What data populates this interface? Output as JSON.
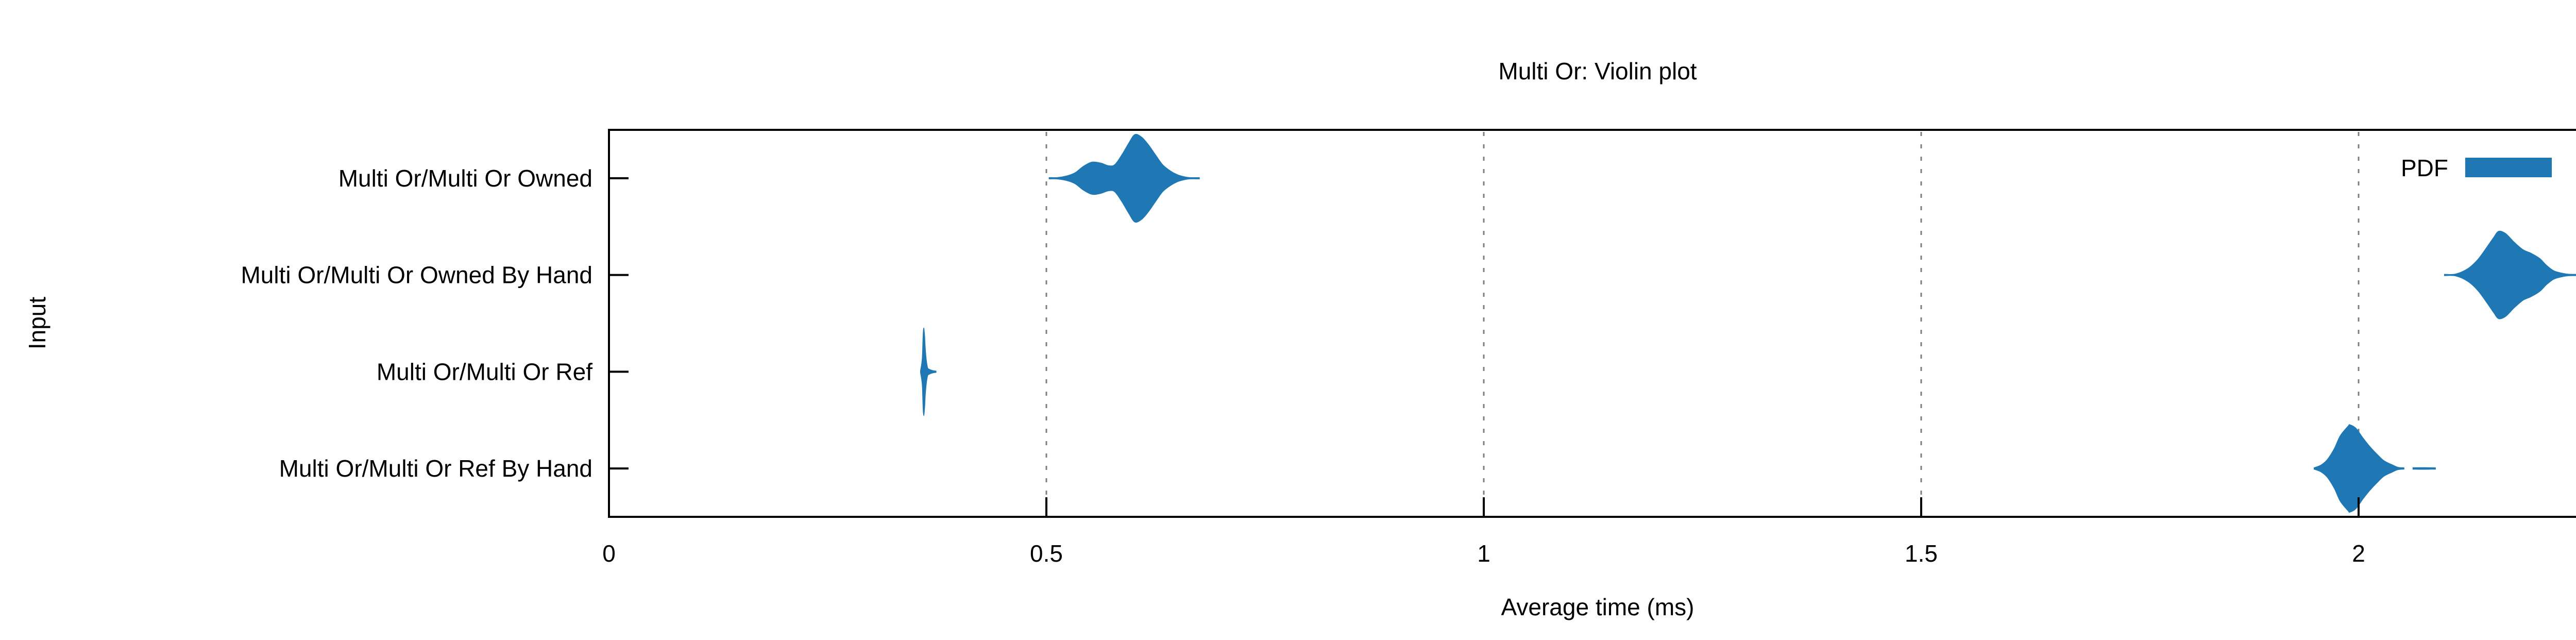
{
  "chart_data": {
    "type": "violin",
    "title": "Multi Or: Violin plot",
    "xlabel": "Average time (ms)",
    "ylabel": "Input",
    "legend": {
      "label": "PDF",
      "position": "top-right"
    },
    "colors": {
      "violin_fill": "#1f78b4",
      "grid": "#7f7f7f",
      "axis": "#000000",
      "text": "#000000"
    },
    "xlim": [
      0,
      2.26
    ],
    "grid": "vertical-dashed-at-xticks",
    "x_ticks": [
      {
        "value": 0,
        "label": "0"
      },
      {
        "value": 0.5,
        "label": "0.5"
      },
      {
        "value": 1,
        "label": "1"
      },
      {
        "value": 1.5,
        "label": "1.5"
      },
      {
        "value": 2,
        "label": "2"
      }
    ],
    "categories": [
      "Multi Or/Multi Or Owned",
      "Multi Or/Multi Or Owned By Hand",
      "Multi Or/Multi Or Ref",
      "Multi Or/Multi Or Ref By Hand"
    ],
    "series": [
      {
        "name": "Multi Or/Multi Or Owned",
        "peak_ms": 0.6,
        "range_ms": [
          0.5,
          0.675
        ],
        "shape": "bimodal",
        "segments": [
          [
            [
              0.503,
              0.012
            ],
            [
              0.513,
              0.02
            ],
            [
              0.524,
              0.06
            ],
            [
              0.533,
              0.13
            ],
            [
              0.542,
              0.27
            ],
            [
              0.552,
              0.37
            ],
            [
              0.562,
              0.35
            ],
            [
              0.571,
              0.29
            ],
            [
              0.578,
              0.31
            ],
            [
              0.586,
              0.53
            ],
            [
              0.594,
              0.8
            ],
            [
              0.601,
              1.0
            ],
            [
              0.609,
              0.94
            ],
            [
              0.617,
              0.76
            ],
            [
              0.625,
              0.53
            ],
            [
              0.633,
              0.31
            ],
            [
              0.641,
              0.18
            ],
            [
              0.649,
              0.09
            ],
            [
              0.657,
              0.04
            ],
            [
              0.664,
              0.015
            ],
            [
              0.675,
              0.012
            ]
          ]
        ]
      },
      {
        "name": "Multi Or/Multi Or Owned By Hand",
        "peak_ms": 2.16,
        "range_ms": [
          2.1,
          2.25
        ],
        "shape": "unimodal-right-shoulder",
        "segments": [
          [
            [
              2.098,
              0.012
            ],
            [
              2.111,
              0.025
            ],
            [
              2.125,
              0.15
            ],
            [
              2.136,
              0.35
            ],
            [
              2.146,
              0.62
            ],
            [
              2.154,
              0.85
            ],
            [
              2.16,
              1.0
            ],
            [
              2.168,
              0.95
            ],
            [
              2.178,
              0.75
            ],
            [
              2.188,
              0.58
            ],
            [
              2.197,
              0.5
            ],
            [
              2.207,
              0.38
            ],
            [
              2.215,
              0.22
            ],
            [
              2.223,
              0.1
            ],
            [
              2.231,
              0.05
            ],
            [
              2.24,
              0.02
            ],
            [
              2.252,
              0.012
            ]
          ]
        ]
      },
      {
        "name": "Multi Or/Multi Or Ref",
        "peak_ms": 0.36,
        "range_ms": [
          0.356,
          0.374
        ],
        "shape": "narrow-spike",
        "segments": [
          [
            [
              0.356,
              0.02
            ],
            [
              0.358,
              0.3
            ],
            [
              0.359,
              0.85
            ],
            [
              0.36,
              1.0
            ],
            [
              0.361,
              0.8
            ],
            [
              0.362,
              0.45
            ],
            [
              0.364,
              0.12
            ],
            [
              0.366,
              0.06
            ],
            [
              0.37,
              0.03
            ],
            [
              0.374,
              0.012
            ]
          ]
        ]
      },
      {
        "name": "Multi Or/Multi Or Ref By Hand",
        "peak_ms": 1.99,
        "range_ms": [
          1.95,
          2.09
        ],
        "shape": "unimodal-right-tail",
        "segments": [
          [
            [
              1.949,
              0.012
            ],
            [
              1.957,
              0.08
            ],
            [
              1.964,
              0.2
            ],
            [
              1.972,
              0.45
            ],
            [
              1.979,
              0.75
            ],
            [
              1.988,
              0.97
            ],
            [
              1.99,
              1.0
            ],
            [
              1.997,
              0.92
            ],
            [
              2.005,
              0.7
            ],
            [
              2.013,
              0.5
            ],
            [
              2.021,
              0.33
            ],
            [
              2.029,
              0.18
            ],
            [
              2.038,
              0.09
            ],
            [
              2.045,
              0.03
            ],
            [
              2.052,
              0.012
            ]
          ],
          [
            [
              2.062,
              0.02
            ],
            [
              2.075,
              0.022
            ],
            [
              2.088,
              0.018
            ]
          ]
        ]
      }
    ]
  }
}
